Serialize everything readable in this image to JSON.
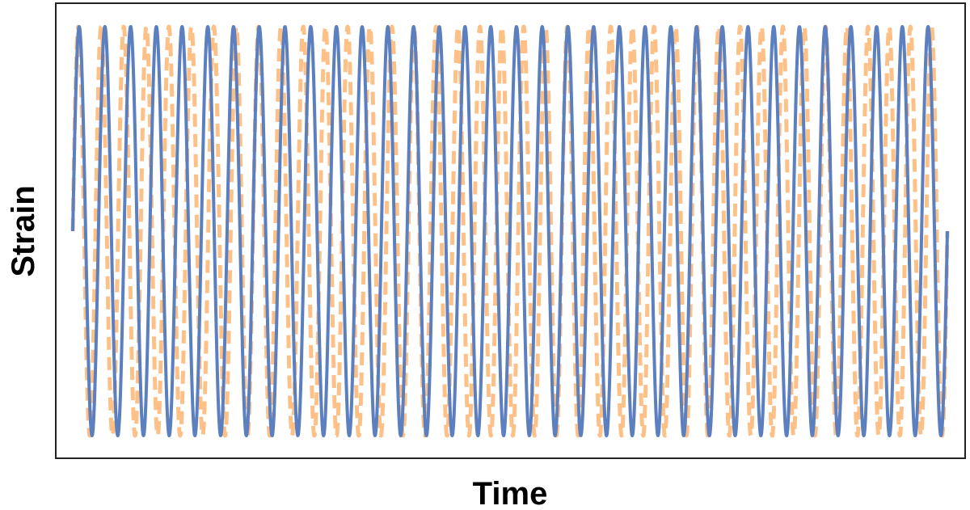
{
  "chart_data": {
    "type": "line",
    "title": "",
    "xlabel": "Time",
    "ylabel": "Strain",
    "ticks": "none",
    "grid": false,
    "legend": "none",
    "xlim": [
      0,
      1
    ],
    "ylim": [
      -1.1,
      1.1
    ],
    "series": [
      {
        "style": "solid",
        "color": "#5B7FBF",
        "form": "sinusoid",
        "amplitude": 1.0,
        "frequency_cycles_per_unit": 34.0,
        "phase_rad": 0.0
      },
      {
        "style": "dashed",
        "color": "#FDB97A",
        "form": "sinusoid_chirp",
        "amplitude": 1.0,
        "frequency_start_cycles_per_unit": 38.5,
        "frequency_end_cycles_per_unit": 41.5,
        "phase_rad": 0.0
      }
    ]
  }
}
